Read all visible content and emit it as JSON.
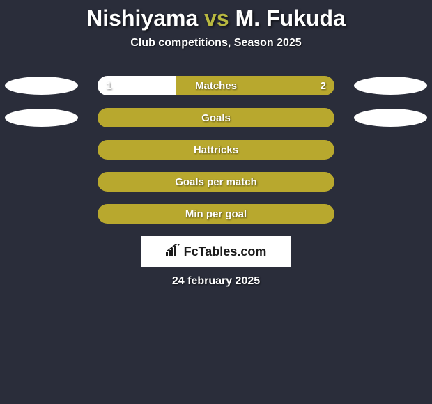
{
  "background_color": "#2a2d3a",
  "title": {
    "player1": "Nishiyama",
    "vs": "vs",
    "player2": "M. Fukuda",
    "player_color": "#ffffff",
    "vs_color": "#b8b840",
    "fontsize": 32
  },
  "subtitle": {
    "text": "Club competitions, Season 2025",
    "color": "#ffffff",
    "fontsize": 16
  },
  "oval_color_left": "#ffffff",
  "oval_color_right": "#ffffff",
  "bars": [
    {
      "label": "Matches",
      "left_value": "1",
      "right_value": "2",
      "left_pct": 33.3,
      "right_pct": 66.7,
      "left_color": "#ffffff",
      "right_color": "#b8a82e",
      "label_color": "#ffffff",
      "value_color": "#ffffff",
      "show_ovals": true,
      "show_values": true
    },
    {
      "label": "Goals",
      "left_value": "",
      "right_value": "",
      "left_pct": 0,
      "right_pct": 100,
      "left_color": "#ffffff",
      "right_color": "#b8a82e",
      "label_color": "#ffffff",
      "value_color": "#ffffff",
      "show_ovals": true,
      "show_values": false
    },
    {
      "label": "Hattricks",
      "left_value": "",
      "right_value": "",
      "left_pct": 0,
      "right_pct": 100,
      "left_color": "#ffffff",
      "right_color": "#b8a82e",
      "label_color": "#ffffff",
      "value_color": "#ffffff",
      "show_ovals": false,
      "show_values": false
    },
    {
      "label": "Goals per match",
      "left_value": "",
      "right_value": "",
      "left_pct": 0,
      "right_pct": 100,
      "left_color": "#ffffff",
      "right_color": "#b8a82e",
      "label_color": "#ffffff",
      "value_color": "#ffffff",
      "show_ovals": false,
      "show_values": false
    },
    {
      "label": "Min per goal",
      "left_value": "",
      "right_value": "",
      "left_pct": 0,
      "right_pct": 100,
      "left_color": "#ffffff",
      "right_color": "#b8a82e",
      "label_color": "#ffffff",
      "value_color": "#ffffff",
      "show_ovals": false,
      "show_values": false
    }
  ],
  "logo": {
    "text": "FcTables.com",
    "bg": "#ffffff",
    "text_color": "#1a1a1a"
  },
  "date": {
    "text": "24 february 2025",
    "color": "#ffffff"
  }
}
